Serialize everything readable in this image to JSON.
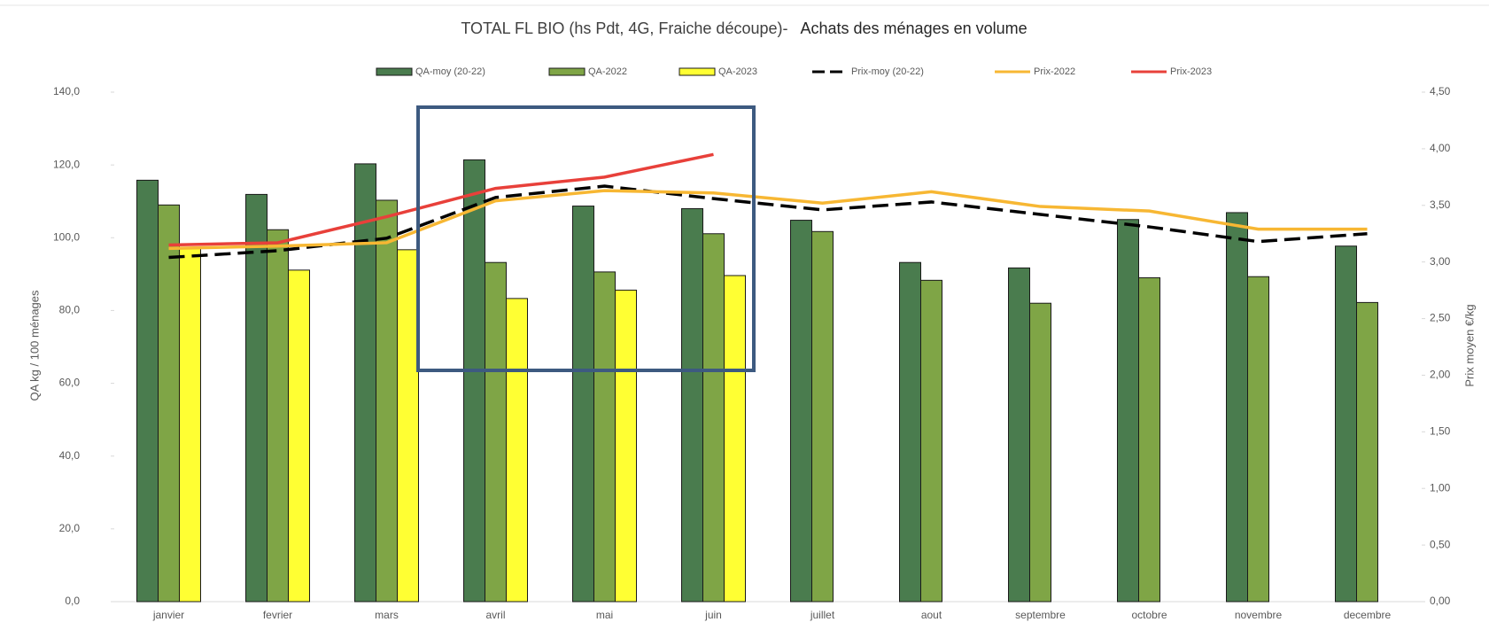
{
  "chart_data": {
    "type": "bar",
    "title": "TOTAL FL BIO (hs Pdt, 4G, Fraiche découpe)-",
    "subtitle": "Achats des ménages en volume",
    "categories": [
      "janvier",
      "fevrier",
      "mars",
      "avril",
      "mai",
      "juin",
      "juillet",
      "aout",
      "septembre",
      "octobre",
      "novembre",
      "decembre"
    ],
    "series": [
      {
        "name": "QA-moy (20-22)",
        "type": "bar",
        "color": "#4a7c4e",
        "values": [
          115.8,
          111.9,
          120.3,
          121.4,
          108.7,
          108.0,
          104.8,
          93.2,
          91.7,
          105.0,
          106.9,
          97.7
        ]
      },
      {
        "name": "QA-2022",
        "type": "bar",
        "color": "#7fa546",
        "values": [
          109.0,
          102.2,
          110.3,
          93.2,
          90.6,
          101.1,
          101.7,
          88.3,
          82.0,
          89.0,
          89.3,
          82.2
        ]
      },
      {
        "name": "QA-2023",
        "type": "bar",
        "color": "#ffff33",
        "values": [
          97.2,
          91.1,
          96.7,
          83.3,
          85.6,
          89.6,
          null,
          null,
          null,
          null,
          null,
          null
        ]
      },
      {
        "name": "Prix-moy (20-22)",
        "type": "line",
        "axis": "y2",
        "dashed": true,
        "color": "#000000",
        "values": [
          3.04,
          3.1,
          3.21,
          3.57,
          3.67,
          3.56,
          3.46,
          3.53,
          3.42,
          3.31,
          3.18,
          3.25
        ]
      },
      {
        "name": "Prix-2022",
        "type": "line",
        "axis": "y2",
        "color": "#f7b733",
        "values": [
          3.12,
          3.14,
          3.17,
          3.54,
          3.63,
          3.61,
          3.52,
          3.62,
          3.49,
          3.45,
          3.29,
          3.29
        ]
      },
      {
        "name": "Prix-2023",
        "type": "line",
        "axis": "y2",
        "color": "#e8403a",
        "values": [
          3.15,
          3.17,
          3.4,
          3.65,
          3.75,
          3.95,
          null,
          null,
          null,
          null,
          null,
          null
        ]
      }
    ],
    "ylabel": "QA kg / 100 ménages",
    "y2label": "Prix moyen €/kg",
    "ylim": [
      0,
      140
    ],
    "yticks": [
      {
        "value": 0,
        "label": "0,0"
      },
      {
        "value": 20,
        "label": "20,0"
      },
      {
        "value": 40,
        "label": "40,0"
      },
      {
        "value": 60,
        "label": "60,0"
      },
      {
        "value": 80,
        "label": "80,0"
      },
      {
        "value": 100,
        "label": "100,0"
      },
      {
        "value": 120,
        "label": "120,0"
      },
      {
        "value": 140,
        "label": "140,0"
      }
    ],
    "y2lim": [
      0,
      4.5
    ],
    "y2ticks": [
      {
        "value": 0,
        "label": "0,00"
      },
      {
        "value": 0.5,
        "label": "0,50"
      },
      {
        "value": 1,
        "label": "1,00"
      },
      {
        "value": 1.5,
        "label": "1,50"
      },
      {
        "value": 2,
        "label": "2,00"
      },
      {
        "value": 2.5,
        "label": "2,50"
      },
      {
        "value": 3,
        "label": "3,00"
      },
      {
        "value": 3.5,
        "label": "3,50"
      },
      {
        "value": 4,
        "label": "4,00"
      },
      {
        "value": 4.5,
        "label": "4,50"
      }
    ],
    "legend": "top"
  }
}
